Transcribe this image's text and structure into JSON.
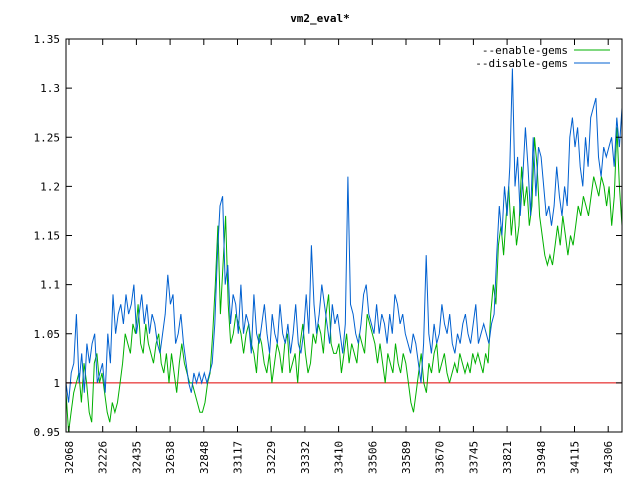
{
  "chart_data": {
    "type": "line",
    "title": "vm2_eval*",
    "xlabel": "",
    "ylabel": "",
    "ylim": [
      0.95,
      1.35
    ],
    "yticks": [
      "0.95",
      "1",
      "1.05",
      "1.1",
      "1.15",
      "1.2",
      "1.25",
      "1.3",
      "1.35"
    ],
    "xticks": [
      "32068",
      "32226",
      "32435",
      "32638",
      "32848",
      "33117",
      "33229",
      "33332",
      "33410",
      "33506",
      "33589",
      "33670",
      "33745",
      "33821",
      "33948",
      "34115",
      "34306"
    ],
    "legend_position": "top-right",
    "grid": false,
    "baseline": {
      "value": 1.0,
      "color": "#e00000"
    },
    "series": [
      {
        "name": "--enable-gems",
        "color": "#00b000",
        "values": [
          0.99,
          0.95,
          0.97,
          0.99,
          1.0,
          1.01,
          0.98,
          1.02,
          1.0,
          0.97,
          0.96,
          1.02,
          1.03,
          1.0,
          1.01,
          0.99,
          0.97,
          0.96,
          0.98,
          0.97,
          0.98,
          1.0,
          1.02,
          1.05,
          1.04,
          1.03,
          1.06,
          1.05,
          1.08,
          1.04,
          1.03,
          1.06,
          1.04,
          1.03,
          1.02,
          1.04,
          1.05,
          1.02,
          1.01,
          1.03,
          1.0,
          1.03,
          1.01,
          0.99,
          1.02,
          1.04,
          1.02,
          1.01,
          1.0,
          1.0,
          0.99,
          0.98,
          0.97,
          0.97,
          0.98,
          1.0,
          1.01,
          1.05,
          1.1,
          1.16,
          1.07,
          1.12,
          1.17,
          1.08,
          1.04,
          1.05,
          1.07,
          1.06,
          1.05,
          1.03,
          1.05,
          1.06,
          1.04,
          1.03,
          1.01,
          1.05,
          1.04,
          1.02,
          1.01,
          1.03,
          1.0,
          1.02,
          1.04,
          1.03,
          1.01,
          1.04,
          1.05,
          1.01,
          1.02,
          1.03,
          1.0,
          1.04,
          1.06,
          1.03,
          1.01,
          1.02,
          1.05,
          1.04,
          1.06,
          1.05,
          1.03,
          1.07,
          1.09,
          1.04,
          1.03,
          1.03,
          1.04,
          1.01,
          1.03,
          1.05,
          1.02,
          1.04,
          1.03,
          1.02,
          1.05,
          1.04,
          1.03,
          1.07,
          1.06,
          1.05,
          1.04,
          1.02,
          1.04,
          1.02,
          1.0,
          1.03,
          1.02,
          1.01,
          1.04,
          1.02,
          1.01,
          1.03,
          1.02,
          1.0,
          0.98,
          0.97,
          0.99,
          1.01,
          1.03,
          1.0,
          0.99,
          1.02,
          1.01,
          1.03,
          1.04,
          1.01,
          1.02,
          1.03,
          1.01,
          1.0,
          1.01,
          1.02,
          1.01,
          1.03,
          1.02,
          1.01,
          1.02,
          1.01,
          1.03,
          1.02,
          1.03,
          1.02,
          1.01,
          1.03,
          1.02,
          1.07,
          1.1,
          1.08,
          1.14,
          1.16,
          1.13,
          1.17,
          1.2,
          1.15,
          1.18,
          1.14,
          1.16,
          1.22,
          1.18,
          1.2,
          1.16,
          1.18,
          1.25,
          1.22,
          1.17,
          1.15,
          1.13,
          1.12,
          1.13,
          1.12,
          1.14,
          1.16,
          1.14,
          1.17,
          1.15,
          1.13,
          1.15,
          1.14,
          1.16,
          1.18,
          1.17,
          1.19,
          1.18,
          1.17,
          1.19,
          1.21,
          1.2,
          1.19,
          1.21,
          1.2,
          1.18,
          1.2,
          1.16,
          1.19,
          1.26,
          1.2,
          1.16
        ],
        "x_start": 0,
        "x_end": 1
      },
      {
        "name": "--disable-gems",
        "color": "#0060d0",
        "values": [
          1.0,
          0.98,
          1.01,
          1.02,
          1.07,
          1.0,
          1.03,
          0.99,
          1.04,
          1.02,
          1.04,
          1.05,
          1.0,
          1.01,
          1.02,
          0.99,
          1.05,
          1.02,
          1.09,
          1.05,
          1.07,
          1.08,
          1.06,
          1.09,
          1.07,
          1.08,
          1.1,
          1.05,
          1.07,
          1.09,
          1.06,
          1.08,
          1.05,
          1.07,
          1.06,
          1.04,
          1.03,
          1.05,
          1.07,
          1.11,
          1.08,
          1.09,
          1.04,
          1.05,
          1.07,
          1.04,
          1.02,
          1.0,
          0.99,
          1.01,
          1.0,
          1.01,
          1.0,
          1.01,
          1.0,
          1.01,
          1.02,
          1.06,
          1.13,
          1.18,
          1.19,
          1.1,
          1.12,
          1.06,
          1.09,
          1.08,
          1.05,
          1.1,
          1.05,
          1.07,
          1.06,
          1.03,
          1.09,
          1.05,
          1.04,
          1.06,
          1.08,
          1.05,
          1.03,
          1.07,
          1.05,
          1.04,
          1.08,
          1.05,
          1.04,
          1.06,
          1.03,
          1.05,
          1.08,
          1.04,
          1.03,
          1.05,
          1.09,
          1.05,
          1.14,
          1.08,
          1.05,
          1.07,
          1.1,
          1.08,
          1.06,
          1.04,
          1.08,
          1.06,
          1.07,
          1.05,
          1.03,
          1.06,
          1.21,
          1.08,
          1.07,
          1.05,
          1.04,
          1.06,
          1.09,
          1.1,
          1.07,
          1.06,
          1.05,
          1.08,
          1.05,
          1.07,
          1.06,
          1.04,
          1.07,
          1.05,
          1.09,
          1.08,
          1.06,
          1.07,
          1.05,
          1.04,
          1.03,
          1.05,
          1.04,
          1.02,
          1.0,
          1.04,
          1.13,
          1.05,
          1.03,
          1.06,
          1.04,
          1.05,
          1.08,
          1.06,
          1.05,
          1.07,
          1.04,
          1.03,
          1.05,
          1.04,
          1.06,
          1.07,
          1.05,
          1.04,
          1.06,
          1.08,
          1.04,
          1.05,
          1.06,
          1.05,
          1.04,
          1.06,
          1.07,
          1.13,
          1.18,
          1.15,
          1.2,
          1.17,
          1.22,
          1.32,
          1.2,
          1.23,
          1.17,
          1.21,
          1.26,
          1.22,
          1.17,
          1.25,
          1.19,
          1.24,
          1.23,
          1.2,
          1.17,
          1.18,
          1.16,
          1.18,
          1.22,
          1.19,
          1.17,
          1.2,
          1.18,
          1.25,
          1.27,
          1.24,
          1.26,
          1.22,
          1.2,
          1.25,
          1.22,
          1.27,
          1.28,
          1.29,
          1.23,
          1.21,
          1.24,
          1.23,
          1.24,
          1.25,
          1.22,
          1.27,
          1.24,
          1.28
        ],
        "x_start": 0,
        "x_end": 1
      }
    ]
  }
}
